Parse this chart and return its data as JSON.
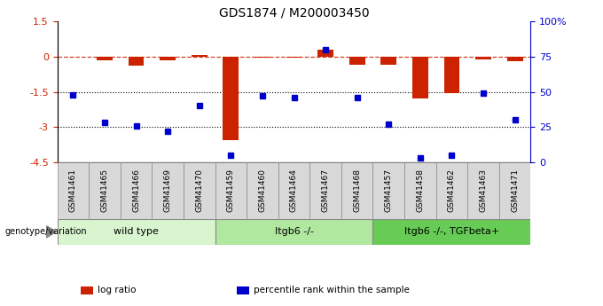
{
  "title": "GDS1874 / M200003450",
  "samples": [
    "GSM41461",
    "GSM41465",
    "GSM41466",
    "GSM41469",
    "GSM41470",
    "GSM41459",
    "GSM41460",
    "GSM41464",
    "GSM41467",
    "GSM41468",
    "GSM41457",
    "GSM41458",
    "GSM41462",
    "GSM41463",
    "GSM41471"
  ],
  "log_ratio": [
    0.0,
    -0.15,
    -0.4,
    -0.15,
    0.08,
    -3.55,
    -0.05,
    -0.05,
    0.28,
    -0.35,
    -0.35,
    -1.8,
    -1.55,
    -0.12,
    -0.2
  ],
  "percentile_rank": [
    48,
    28,
    26,
    22,
    40,
    5,
    47,
    46,
    80,
    46,
    27,
    3,
    5,
    49,
    30
  ],
  "groups": [
    {
      "label": "wild type",
      "start": 0,
      "end": 5,
      "color": "#d8f5d0"
    },
    {
      "label": "Itgb6 -/-",
      "start": 5,
      "end": 10,
      "color": "#b0e8a0"
    },
    {
      "label": "Itgb6 -/-, TGFbeta+",
      "start": 10,
      "end": 15,
      "color": "#66cc55"
    }
  ],
  "ylim_left": [
    -4.5,
    1.5
  ],
  "ylim_right": [
    0,
    100
  ],
  "yticks_left": [
    1.5,
    0,
    -1.5,
    -3.0,
    -4.5
  ],
  "yticks_right": [
    100,
    75,
    50,
    25,
    0
  ],
  "dotted_lines": [
    -1.5,
    -3.0
  ],
  "bar_color": "#cc2200",
  "dot_color": "#0000cc",
  "bar_width": 0.5,
  "dot_size": 5,
  "legend_items": [
    "log ratio",
    "percentile rank within the sample"
  ],
  "legend_colors": [
    "#cc2200",
    "#0000cc"
  ]
}
